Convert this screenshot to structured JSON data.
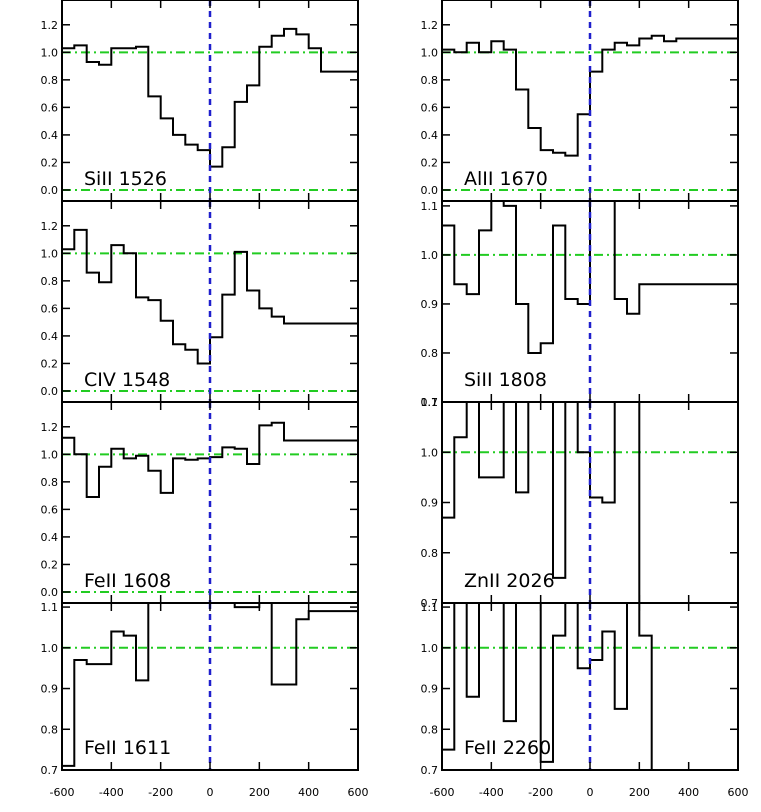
{
  "chart_data": [
    {
      "type": "line",
      "label": "SiII 1526",
      "ylim": [
        -0.08,
        1.38
      ],
      "yticks": [
        "0.0",
        "0.2",
        "0.4",
        "0.6",
        "0.8",
        "1.0",
        "1.2"
      ],
      "ytick_values": [
        0,
        0.2,
        0.4,
        0.6,
        0.8,
        1.0,
        1.2
      ],
      "xlim": [
        -600,
        600
      ],
      "continuum": 1.0,
      "zero_line": 0.0,
      "center_velocity": 0,
      "step_x": [
        -600,
        -550,
        -500,
        -450,
        -400,
        -350,
        -300,
        -250,
        -200,
        -150,
        -100,
        -50,
        0,
        50,
        100,
        150,
        200,
        250,
        300,
        350,
        400,
        450,
        500,
        550,
        600
      ],
      "step_y": [
        1.03,
        1.05,
        0.93,
        0.91,
        1.03,
        1.03,
        1.04,
        0.68,
        0.52,
        0.4,
        0.33,
        0.29,
        0.17,
        0.31,
        0.64,
        0.76,
        1.04,
        1.12,
        1.17,
        1.13,
        1.03,
        0.86,
        0.86,
        0.86,
        0.86
      ]
    },
    {
      "type": "line",
      "label": "AlII 1670",
      "ylim": [
        -0.08,
        1.38
      ],
      "yticks": [
        "0.0",
        "0.2",
        "0.4",
        "0.6",
        "0.8",
        "1.0",
        "1.2"
      ],
      "ytick_values": [
        0,
        0.2,
        0.4,
        0.6,
        0.8,
        1.0,
        1.2
      ],
      "xlim": [
        -600,
        600
      ],
      "continuum": 1.0,
      "zero_line": 0.0,
      "center_velocity": 0,
      "step_x": [
        -600,
        -550,
        -500,
        -450,
        -400,
        -350,
        -300,
        -250,
        -200,
        -150,
        -100,
        -50,
        0,
        50,
        100,
        150,
        200,
        250,
        300,
        350,
        400,
        450,
        500,
        550,
        600
      ],
      "step_y": [
        1.02,
        1.0,
        1.07,
        1.0,
        1.08,
        1.02,
        0.73,
        0.45,
        0.29,
        0.27,
        0.25,
        0.55,
        0.86,
        1.02,
        1.07,
        1.05,
        1.1,
        1.12,
        1.08,
        1.1,
        1.1,
        1.1,
        1.1,
        1.1,
        1.1
      ]
    },
    {
      "type": "line",
      "label": "CIV 1548",
      "ylim": [
        -0.08,
        1.38
      ],
      "yticks": [
        "0.0",
        "0.2",
        "0.4",
        "0.6",
        "0.8",
        "1.0",
        "1.2"
      ],
      "ytick_values": [
        0,
        0.2,
        0.4,
        0.6,
        0.8,
        1.0,
        1.2
      ],
      "xlim": [
        -600,
        600
      ],
      "continuum": 1.0,
      "zero_line": 0.0,
      "center_velocity": 0,
      "step_x": [
        -600,
        -550,
        -500,
        -450,
        -400,
        -350,
        -300,
        -250,
        -200,
        -150,
        -100,
        -50,
        0,
        50,
        100,
        150,
        200,
        250,
        300,
        350,
        400,
        450,
        500,
        550,
        600
      ],
      "step_y": [
        1.03,
        1.17,
        0.86,
        0.79,
        1.06,
        1.0,
        0.68,
        0.66,
        0.51,
        0.34,
        0.3,
        0.2,
        0.39,
        0.7,
        1.01,
        0.73,
        0.6,
        0.54,
        0.49,
        0.49,
        0.49,
        0.49,
        0.49,
        0.49,
        0.49
      ]
    },
    {
      "type": "line",
      "label": "SiII 1808",
      "ylim": [
        0.7,
        1.11
      ],
      "yticks": [
        "0.7",
        "0.8",
        "0.9",
        "1.0",
        "1.1"
      ],
      "ytick_values": [
        0.7,
        0.8,
        0.9,
        1.0,
        1.1
      ],
      "xlim": [
        -600,
        600
      ],
      "continuum": 1.0,
      "center_velocity": 0,
      "step_x": [
        -600,
        -550,
        -500,
        -450,
        -400,
        -350,
        -300,
        -250,
        -200,
        -150,
        -100,
        -50,
        0,
        50,
        100,
        150,
        200,
        250,
        300,
        350,
        400,
        450,
        500,
        550,
        600
      ],
      "step_y": [
        1.06,
        0.94,
        0.92,
        1.05,
        1.11,
        1.1,
        0.9,
        0.8,
        0.82,
        1.06,
        0.91,
        0.9,
        1.11,
        1.11,
        0.91,
        0.88,
        0.94,
        0.94,
        0.94,
        0.94,
        0.94,
        0.94,
        0.94,
        0.94,
        0.94
      ]
    },
    {
      "type": "line",
      "label": "FeII 1608",
      "ylim": [
        -0.08,
        1.38
      ],
      "yticks": [
        "0.0",
        "0.2",
        "0.4",
        "0.6",
        "0.8",
        "1.0",
        "1.2"
      ],
      "ytick_values": [
        0,
        0.2,
        0.4,
        0.6,
        0.8,
        1.0,
        1.2
      ],
      "xlim": [
        -600,
        600
      ],
      "continuum": 1.0,
      "zero_line": 0.0,
      "center_velocity": 0,
      "step_x": [
        -600,
        -550,
        -500,
        -450,
        -400,
        -350,
        -300,
        -250,
        -200,
        -150,
        -100,
        -50,
        0,
        50,
        100,
        150,
        200,
        250,
        300,
        350,
        400,
        450,
        500,
        550,
        600
      ],
      "step_y": [
        1.12,
        1.0,
        0.69,
        0.91,
        1.04,
        0.97,
        0.99,
        0.88,
        0.72,
        0.97,
        0.96,
        0.97,
        0.98,
        1.05,
        1.04,
        0.93,
        1.21,
        1.23,
        1.1,
        1.1,
        1.1,
        1.1,
        1.1,
        1.1,
        1.1
      ]
    },
    {
      "type": "line",
      "label": "ZnII 2026",
      "ylim": [
        0.7,
        1.1
      ],
      "yticks": [
        "0.7",
        "0.8",
        "0.9",
        "1.0",
        "1.1"
      ],
      "ytick_values": [
        0.7,
        0.8,
        0.9,
        1.0,
        1.1
      ],
      "xlim": [
        -600,
        600
      ],
      "continuum": 1.0,
      "center_velocity": 0,
      "step_x": [
        -600,
        -550,
        -500,
        -450,
        -400,
        -350,
        -300,
        -250,
        -200,
        -150,
        -100,
        -50,
        0,
        50,
        100,
        150,
        200,
        250,
        300,
        350,
        400,
        450,
        500,
        550,
        600
      ],
      "step_y": [
        0.87,
        1.03,
        1.1,
        0.95,
        0.95,
        1.1,
        0.92,
        1.1,
        1.1,
        0.75,
        1.1,
        1.0,
        0.91,
        0.9,
        1.1,
        1.1,
        0.7,
        0.7,
        0.7,
        0.7,
        0.7,
        0.7,
        0.7,
        0.7,
        0.7
      ]
    },
    {
      "type": "line",
      "label": "FeII 1611",
      "ylim": [
        0.7,
        1.11
      ],
      "yticks": [
        "0.7",
        "0.8",
        "0.9",
        "1.0",
        "1.1"
      ],
      "ytick_values": [
        0.7,
        0.8,
        0.9,
        1.0,
        1.1
      ],
      "xlim": [
        -600,
        600
      ],
      "continuum": 1.0,
      "center_velocity": 0,
      "step_x": [
        -600,
        -550,
        -500,
        -450,
        -400,
        -350,
        -300,
        -250,
        -200,
        -150,
        -100,
        -50,
        0,
        50,
        100,
        150,
        200,
        250,
        300,
        350,
        400,
        450,
        500,
        550,
        600
      ],
      "step_y": [
        0.71,
        0.97,
        0.96,
        0.96,
        1.04,
        1.03,
        0.92,
        1.11,
        1.11,
        1.11,
        1.11,
        1.11,
        1.11,
        1.11,
        1.1,
        1.1,
        1.11,
        0.91,
        0.91,
        1.07,
        1.09,
        1.09,
        1.09,
        1.09,
        1.09
      ]
    },
    {
      "type": "line",
      "label": "FeII 2260",
      "ylim": [
        0.7,
        1.11
      ],
      "yticks": [
        "0.7",
        "0.8",
        "0.9",
        "1.0",
        "1.1"
      ],
      "ytick_values": [
        0.7,
        0.8,
        0.9,
        1.0,
        1.1
      ],
      "xlim": [
        -600,
        600
      ],
      "continuum": 1.0,
      "center_velocity": 0,
      "step_x": [
        -600,
        -550,
        -500,
        -450,
        -400,
        -350,
        -300,
        -250,
        -200,
        -150,
        -100,
        -50,
        0,
        50,
        100,
        150,
        200,
        250,
        300,
        350,
        400,
        450,
        500,
        550,
        600
      ],
      "step_y": [
        0.75,
        1.11,
        0.88,
        1.11,
        1.11,
        0.82,
        1.11,
        1.11,
        0.72,
        1.03,
        1.11,
        0.95,
        0.97,
        1.04,
        0.85,
        1.11,
        1.03,
        0.7,
        0.7,
        0.7,
        0.7,
        0.7,
        0.7,
        0.7,
        0.7
      ]
    }
  ],
  "xaxis": {
    "tick_labels": [
      "-600",
      "-400",
      "-200",
      "0",
      "200",
      "400",
      "600"
    ],
    "tick_values": [
      -600,
      -400,
      -200,
      0,
      200,
      400,
      600
    ]
  },
  "colors": {
    "spectrum": "#000000",
    "continuum": "#22cc22",
    "center": "#1f1fcc"
  }
}
